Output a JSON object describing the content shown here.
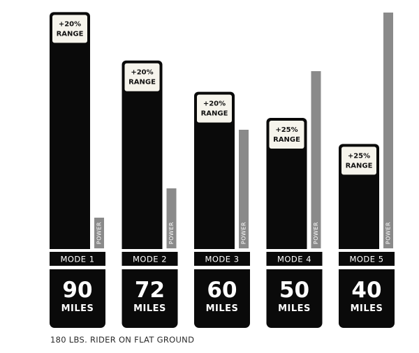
{
  "chart_data": {
    "type": "bar",
    "categories": [
      "MODE 1",
      "MODE 2",
      "MODE 3",
      "MODE 4",
      "MODE 5"
    ],
    "series": [
      {
        "values": [
          90,
          72,
          60,
          50,
          40
        ]
      },
      {
        "name": "POWER",
        "values": [
          1,
          2,
          4,
          6,
          8
        ]
      }
    ],
    "range_labels": [
      [
        "+20%",
        "RANGE"
      ],
      [
        "+20%",
        "RANGE"
      ],
      [
        "+20%",
        "RANGE"
      ],
      [
        "+25%",
        "RANGE"
      ],
      [
        "+25%",
        "RANGE"
      ]
    ],
    "value_unit": "MILES",
    "power_label": "POWER",
    "footnote": "180 LBS. RIDER ON FLAT GROUND",
    "grid": false,
    "legend": "none",
    "colors": {
      "bar": "#0a0a0a",
      "power_bar": "#8a8a8a",
      "label_box": "#f6f4ec",
      "background": "#ffffff"
    }
  }
}
